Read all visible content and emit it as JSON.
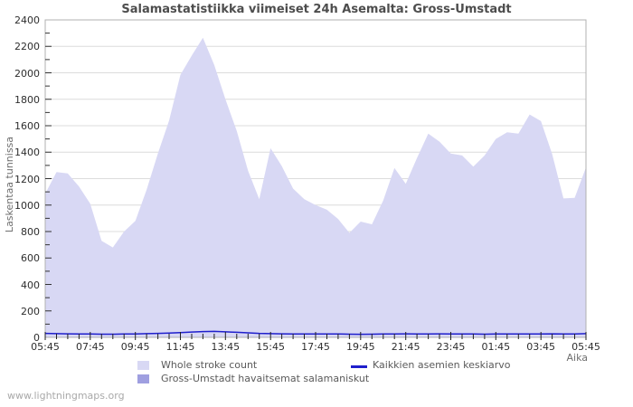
{
  "title": "Salamastatistiikka viimeiset 24h Asemalta: Gross-Umstadt",
  "watermark": "www.lightningmaps.org",
  "axes": {
    "y_label": "Laskentaa tunnissa",
    "x_label": "Aika"
  },
  "legend": [
    {
      "label": "Whole stroke count",
      "swatch": "area",
      "color": "#d8d8f4"
    },
    {
      "label": "Gross-Umstadt havaitsemat salamaniskut",
      "swatch": "area",
      "color": "#9f9fe0"
    },
    {
      "label": "Kaikkien asemien keskiarvo",
      "swatch": "line",
      "color": "#1f1fcc"
    }
  ],
  "colors": {
    "whole_stroke_fill": "#d8d8f4",
    "station_fill": "#9f9fe0",
    "average_line": "#1f1fcc",
    "gridline": "#dcdcdc",
    "plot_border": "#b0b0b0",
    "title_text": "#4d4d4d",
    "tick_text": "#2e2e2e",
    "axis_label_text": "#6f6f6f",
    "watermark_text": "#a9a9a9"
  },
  "chart_data": {
    "type": "area",
    "title": "Salamastatistiikka viimeiset 24h Asemalta: Gross-Umstadt",
    "xlabel": "Aika",
    "ylabel": "Laskentaa tunnissa",
    "ylim": [
      0,
      2400
    ],
    "y_ticks": [
      0,
      200,
      400,
      600,
      800,
      1000,
      1200,
      1400,
      1600,
      1800,
      2000,
      2200,
      2400
    ],
    "y_minor_tick_step": 100,
    "x_tick_labels": [
      "05:45",
      "07:45",
      "09:45",
      "11:45",
      "13:45",
      "15:45",
      "17:45",
      "19:45",
      "21:45",
      "23:45",
      "01:45",
      "03:45",
      "05:45"
    ],
    "x_minor_tick_minutes": 30,
    "grid": "horizontal-only",
    "legend_position": "bottom",
    "sample_interval_minutes": 30,
    "x_times": [
      "05:45",
      "06:15",
      "06:45",
      "07:15",
      "07:45",
      "08:15",
      "08:45",
      "09:15",
      "09:45",
      "10:15",
      "10:45",
      "11:15",
      "11:45",
      "12:15",
      "12:45",
      "13:15",
      "13:45",
      "14:15",
      "14:45",
      "15:15",
      "15:45",
      "16:15",
      "16:45",
      "17:15",
      "17:45",
      "18:15",
      "18:45",
      "19:15",
      "19:45",
      "20:15",
      "20:45",
      "21:15",
      "21:45",
      "22:15",
      "22:45",
      "23:15",
      "23:45",
      "00:15",
      "00:45",
      "01:15",
      "01:45",
      "02:15",
      "02:45",
      "03:15",
      "03:45",
      "04:15",
      "04:45",
      "05:15",
      "05:45"
    ],
    "series": [
      {
        "name": "Whole stroke count",
        "type": "area",
        "color": "#d8d8f4",
        "values": [
          1085,
          1250,
          1240,
          1140,
          1010,
          730,
          680,
          800,
          880,
          1115,
          1390,
          1640,
          1985,
          2130,
          2265,
          2060,
          1800,
          1560,
          1260,
          1045,
          1430,
          1295,
          1125,
          1045,
          1000,
          965,
          895,
          790,
          875,
          855,
          1035,
          1280,
          1160,
          1355,
          1540,
          1480,
          1390,
          1375,
          1290,
          1375,
          1500,
          1550,
          1540,
          1685,
          1635,
          1385,
          1050,
          1055,
          1285
        ]
      },
      {
        "name": "Gross-Umstadt havaitsemat salamaniskut",
        "type": "area",
        "color": "#9f9fe0",
        "values": [
          0,
          0,
          0,
          0,
          0,
          0,
          0,
          0,
          0,
          0,
          0,
          0,
          0,
          0,
          0,
          0,
          0,
          0,
          0,
          0,
          0,
          0,
          0,
          0,
          0,
          0,
          0,
          0,
          0,
          0,
          0,
          0,
          0,
          0,
          0,
          0,
          0,
          0,
          0,
          0,
          0,
          0,
          0,
          0,
          0,
          0,
          0,
          0,
          0
        ]
      },
      {
        "name": "Kaikkien asemien keskiarvo",
        "type": "line",
        "color": "#1f1fcc",
        "values": [
          30,
          28,
          27,
          26,
          25,
          24,
          24,
          25,
          26,
          28,
          30,
          33,
          36,
          40,
          44,
          45,
          42,
          38,
          34,
          30,
          28,
          27,
          26,
          25,
          25,
          26,
          25,
          24,
          23,
          24,
          25,
          26,
          27,
          26,
          26,
          27,
          26,
          25,
          25,
          24,
          25,
          26,
          26,
          25,
          26,
          27,
          25,
          26,
          28
        ]
      }
    ]
  }
}
